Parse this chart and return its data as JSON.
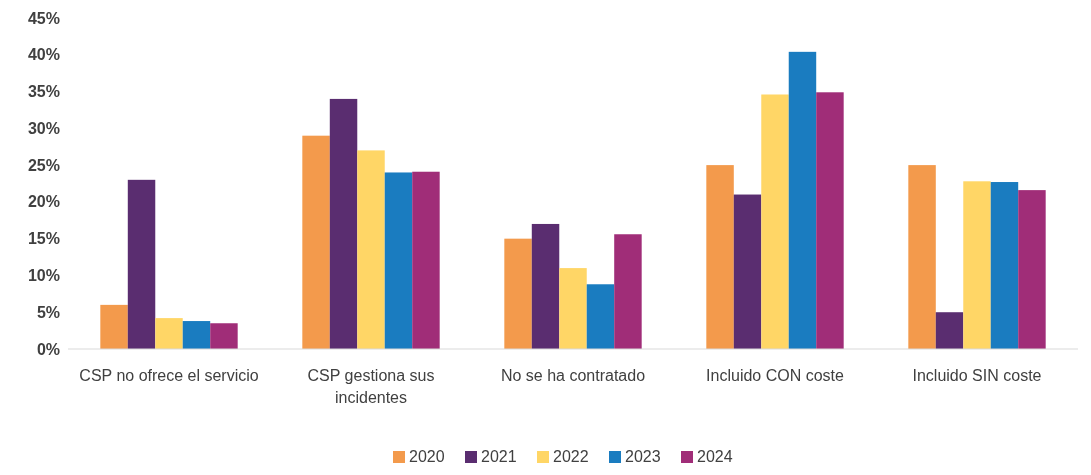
{
  "chart_data": {
    "type": "bar",
    "categories": [
      "CSP no ofrece el servicio",
      "CSP gestiona sus incidentes",
      "No se ha contratado",
      "Incluido CON coste",
      "Incluido SIN coste"
    ],
    "series": [
      {
        "name": "2020",
        "color": "#f39a4c",
        "values": [
          6,
          29,
          15,
          25,
          25
        ]
      },
      {
        "name": "2021",
        "color": "#5a2d70",
        "values": [
          23,
          34,
          17,
          21,
          5
        ]
      },
      {
        "name": "2022",
        "color": "#ffd666",
        "values": [
          4.2,
          27,
          11,
          34.6,
          22.8
        ]
      },
      {
        "name": "2023",
        "color": "#1a7cc0",
        "values": [
          3.8,
          24,
          8.8,
          40.4,
          22.7
        ]
      },
      {
        "name": "2024",
        "color": "#a02d78",
        "values": [
          3.5,
          24.1,
          15.6,
          34.9,
          21.6
        ]
      }
    ],
    "ylim": [
      0,
      45
    ],
    "yticks": [
      {
        "value": 0,
        "label": "0%"
      },
      {
        "value": 5,
        "label": "5%"
      },
      {
        "value": 10,
        "label": "10%"
      },
      {
        "value": 15,
        "label": "15%"
      },
      {
        "value": 20,
        "label": "20%"
      },
      {
        "value": 25,
        "label": "25%"
      },
      {
        "value": 30,
        "label": "30%"
      },
      {
        "value": 35,
        "label": "35%"
      },
      {
        "value": 40,
        "label": "40%"
      },
      {
        "value": 45,
        "label": "45%"
      }
    ],
    "grid": false,
    "legend": "bottom"
  }
}
